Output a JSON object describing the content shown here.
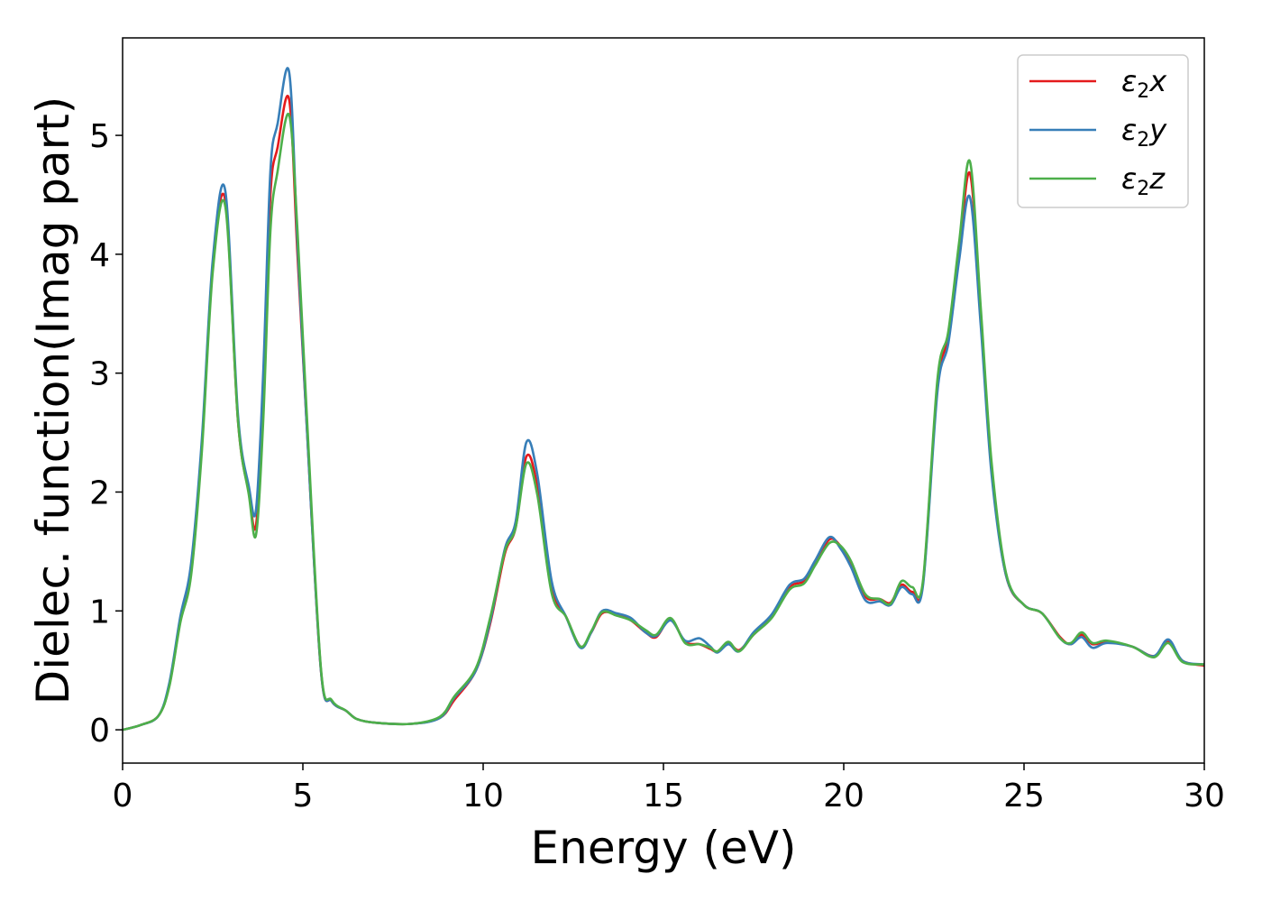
{
  "chart_data": {
    "type": "line",
    "xlabel": "Energy (eV)",
    "ylabel": "Dielec. function(Imag part)",
    "xlim": [
      0,
      30
    ],
    "ylim": [
      -0.28,
      5.82
    ],
    "xticks": [
      0,
      5,
      10,
      15,
      20,
      25,
      30
    ],
    "yticks": [
      0,
      1,
      2,
      3,
      4,
      5
    ],
    "grid": false,
    "legend_position": "top-right",
    "series": [
      {
        "name": "ε2x",
        "legend_base": "ε",
        "legend_sub": "2",
        "legend_var": "x",
        "color": "#e41a1c",
        "x": [
          0,
          0.5,
          1,
          1.3,
          1.6,
          1.9,
          2.2,
          2.5,
          2.85,
          3.2,
          3.5,
          3.7,
          3.9,
          4.1,
          4.3,
          4.62,
          4.85,
          5.1,
          5.5,
          5.8,
          6.2,
          6.5,
          7,
          8,
          8.8,
          9.2,
          9.8,
          10.2,
          10.6,
          10.9,
          11.2,
          11.5,
          11.9,
          12.3,
          12.7,
          13.0,
          13.3,
          13.7,
          14.1,
          14.5,
          14.8,
          15.2,
          15.6,
          16.0,
          16.3,
          16.5,
          16.8,
          17.1,
          17.5,
          18.0,
          18.5,
          18.9,
          19.2,
          19.6,
          19.9,
          20.2,
          20.6,
          21.0,
          21.3,
          21.6,
          21.9,
          22.2,
          22.6,
          22.9,
          23.2,
          23.5,
          23.8,
          24.1,
          24.5,
          25.0,
          25.5,
          26.0,
          26.3,
          26.6,
          26.9,
          27.3,
          28.0,
          28.6,
          29.0,
          29.4,
          30
        ],
        "values": [
          0,
          0.04,
          0.12,
          0.38,
          0.92,
          1.35,
          2.4,
          3.9,
          4.45,
          2.6,
          2.0,
          1.72,
          2.8,
          4.5,
          4.9,
          5.3,
          4.0,
          2.6,
          0.5,
          0.24,
          0.16,
          0.09,
          0.06,
          0.05,
          0.1,
          0.25,
          0.5,
          0.9,
          1.48,
          1.7,
          2.3,
          2.05,
          1.2,
          0.95,
          0.7,
          0.82,
          0.98,
          0.97,
          0.92,
          0.82,
          0.78,
          0.93,
          0.74,
          0.72,
          0.68,
          0.66,
          0.73,
          0.67,
          0.8,
          0.95,
          1.2,
          1.25,
          1.4,
          1.6,
          1.55,
          1.4,
          1.12,
          1.1,
          1.07,
          1.22,
          1.16,
          1.24,
          2.9,
          3.3,
          4.0,
          4.68,
          3.5,
          2.2,
          1.3,
          1.05,
          0.98,
          0.78,
          0.72,
          0.8,
          0.72,
          0.74,
          0.7,
          0.62,
          0.74,
          0.58,
          0.54
        ]
      },
      {
        "name": "ε2y",
        "legend_base": "ε",
        "legend_sub": "2",
        "legend_var": "y",
        "color": "#377eb8",
        "x": [
          0,
          0.5,
          1,
          1.3,
          1.6,
          1.9,
          2.2,
          2.5,
          2.85,
          3.2,
          3.5,
          3.7,
          3.9,
          4.1,
          4.3,
          4.62,
          4.85,
          5.1,
          5.5,
          5.8,
          6.2,
          6.5,
          7,
          8,
          8.8,
          9.2,
          9.8,
          10.2,
          10.6,
          10.9,
          11.2,
          11.5,
          11.9,
          12.3,
          12.7,
          13.0,
          13.3,
          13.7,
          14.1,
          14.5,
          14.8,
          15.2,
          15.6,
          16.0,
          16.3,
          16.5,
          16.8,
          17.1,
          17.5,
          18.0,
          18.5,
          18.9,
          19.2,
          19.6,
          19.9,
          20.2,
          20.6,
          21.0,
          21.3,
          21.6,
          21.9,
          22.2,
          22.6,
          22.9,
          23.2,
          23.5,
          23.8,
          24.1,
          24.5,
          25.0,
          25.5,
          26.0,
          26.3,
          26.6,
          26.9,
          27.3,
          28.0,
          28.6,
          29.0,
          29.4,
          30
        ],
        "values": [
          0,
          0.04,
          0.12,
          0.4,
          0.95,
          1.4,
          2.45,
          3.95,
          4.53,
          2.65,
          2.05,
          1.85,
          3.0,
          4.7,
          5.1,
          5.53,
          4.1,
          2.6,
          0.5,
          0.24,
          0.16,
          0.09,
          0.06,
          0.05,
          0.1,
          0.27,
          0.5,
          0.92,
          1.52,
          1.75,
          2.42,
          2.15,
          1.25,
          0.95,
          0.69,
          0.82,
          1.0,
          0.98,
          0.94,
          0.82,
          0.79,
          0.92,
          0.75,
          0.77,
          0.7,
          0.65,
          0.72,
          0.66,
          0.82,
          0.97,
          1.22,
          1.27,
          1.42,
          1.62,
          1.53,
          1.37,
          1.09,
          1.08,
          1.05,
          1.2,
          1.14,
          1.22,
          2.85,
          3.25,
          3.95,
          4.48,
          3.4,
          2.15,
          1.3,
          1.05,
          0.98,
          0.77,
          0.72,
          0.78,
          0.69,
          0.73,
          0.7,
          0.62,
          0.76,
          0.58,
          0.55
        ]
      },
      {
        "name": "ε2z",
        "legend_base": "ε",
        "legend_sub": "2",
        "legend_var": "z",
        "color": "#4daf4a",
        "x": [
          0,
          0.5,
          1,
          1.3,
          1.6,
          1.9,
          2.2,
          2.5,
          2.85,
          3.2,
          3.5,
          3.7,
          3.9,
          4.1,
          4.3,
          4.62,
          4.85,
          5.1,
          5.5,
          5.8,
          6.2,
          6.5,
          7,
          8,
          8.8,
          9.2,
          9.8,
          10.2,
          10.6,
          10.9,
          11.2,
          11.5,
          11.9,
          12.3,
          12.7,
          13.0,
          13.3,
          13.7,
          14.1,
          14.5,
          14.8,
          15.2,
          15.6,
          16.0,
          16.3,
          16.5,
          16.8,
          17.1,
          17.5,
          18.0,
          18.5,
          18.9,
          19.2,
          19.6,
          19.9,
          20.2,
          20.6,
          21.0,
          21.3,
          21.6,
          21.9,
          22.2,
          22.6,
          22.9,
          23.2,
          23.5,
          23.8,
          24.1,
          24.5,
          25.0,
          25.5,
          26.0,
          26.3,
          26.6,
          26.9,
          27.3,
          28.0,
          28.6,
          29.0,
          29.4,
          30
        ],
        "values": [
          0,
          0.04,
          0.12,
          0.37,
          0.9,
          1.3,
          2.35,
          3.85,
          4.4,
          2.6,
          1.98,
          1.64,
          2.6,
          4.2,
          4.7,
          5.17,
          4.2,
          2.7,
          0.52,
          0.25,
          0.16,
          0.09,
          0.06,
          0.05,
          0.11,
          0.28,
          0.52,
          0.95,
          1.5,
          1.7,
          2.24,
          1.98,
          1.15,
          0.95,
          0.7,
          0.83,
          0.99,
          0.96,
          0.92,
          0.84,
          0.8,
          0.94,
          0.73,
          0.72,
          0.69,
          0.66,
          0.74,
          0.66,
          0.8,
          0.94,
          1.18,
          1.23,
          1.38,
          1.57,
          1.55,
          1.42,
          1.14,
          1.1,
          1.06,
          1.25,
          1.2,
          1.26,
          2.95,
          3.35,
          4.1,
          4.78,
          3.55,
          2.25,
          1.32,
          1.05,
          0.98,
          0.77,
          0.73,
          0.82,
          0.73,
          0.75,
          0.7,
          0.61,
          0.73,
          0.57,
          0.55
        ]
      }
    ]
  }
}
